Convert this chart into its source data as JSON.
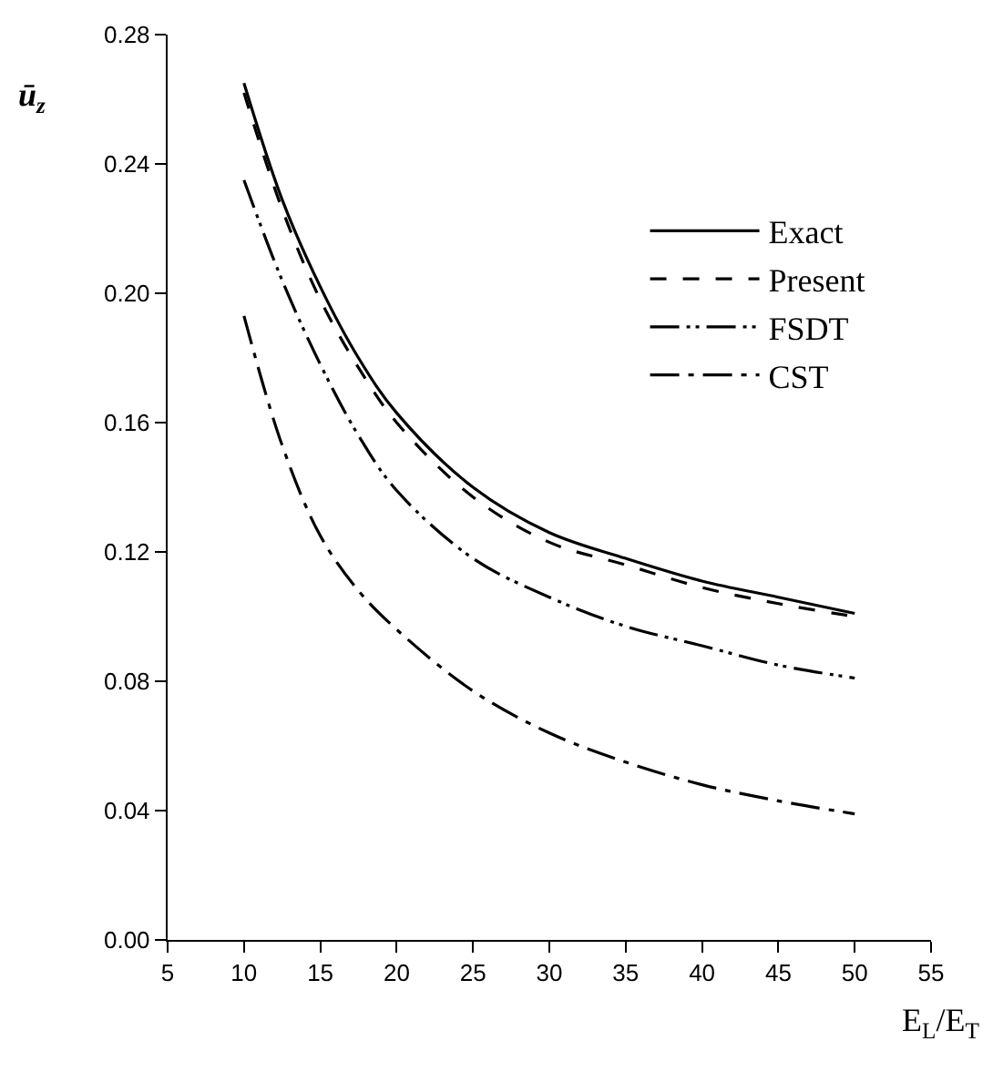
{
  "chart_data": {
    "type": "line",
    "xlabel": "E$_{L}$/E$_{T}$",
    "ylabel": "ū$_{z}$",
    "x": [
      10,
      12.5,
      15,
      17.5,
      20,
      25,
      30,
      35,
      40,
      45,
      50
    ],
    "series": [
      {
        "name": "Exact",
        "color": "#000000",
        "line_style": "solid",
        "values": [
          0.265,
          0.229,
          0.202,
          0.18,
          0.163,
          0.14,
          0.126,
          0.118,
          0.111,
          0.106,
          0.101
        ]
      },
      {
        "name": "Present",
        "color": "#000000",
        "line_style": "dashed",
        "values": [
          0.262,
          0.226,
          0.198,
          0.177,
          0.16,
          0.137,
          0.123,
          0.116,
          0.109,
          0.104,
          0.1
        ]
      },
      {
        "name": "FSDT",
        "color": "#000000",
        "line_style": "dashdotdot",
        "values": [
          0.235,
          0.204,
          0.178,
          0.156,
          0.139,
          0.118,
          0.106,
          0.097,
          0.091,
          0.085,
          0.081
        ]
      },
      {
        "name": "CST",
        "color": "#000000",
        "line_style": "dashdot",
        "values": [
          0.193,
          0.153,
          0.125,
          0.108,
          0.096,
          0.077,
          0.064,
          0.055,
          0.048,
          0.043,
          0.039
        ]
      }
    ],
    "xlim": [
      5,
      55
    ],
    "xticks": [
      5,
      10,
      15,
      20,
      25,
      30,
      35,
      40,
      45,
      50,
      55
    ],
    "ylim": [
      0,
      0.28
    ],
    "yticks": [
      {
        "value": 0,
        "label": "0.00"
      },
      {
        "value": 0.04,
        "label": "0.04"
      },
      {
        "value": 0.08,
        "label": "0.08"
      },
      {
        "value": 0.12,
        "label": "0.12"
      },
      {
        "value": 0.16,
        "label": "0.16"
      },
      {
        "value": 0.2,
        "label": "0.20"
      },
      {
        "value": 0.24,
        "label": "0.24"
      },
      {
        "value": 0.28,
        "label": "0.28"
      }
    ],
    "legend": "top right",
    "marker": "none"
  }
}
